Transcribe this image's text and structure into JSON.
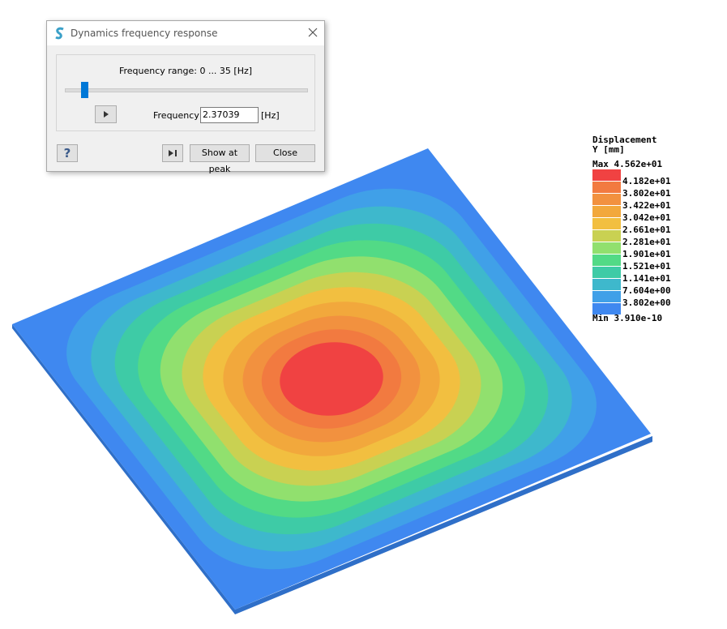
{
  "dialog": {
    "title": "Dynamics frequency response",
    "range_label": "Frequency range: 0 ... 35 [Hz]",
    "frequency_label": "Frequency",
    "frequency_value": "2.37039",
    "unit": "[Hz]",
    "help": "?",
    "buttons": [
      "Show at peak",
      "Close"
    ]
  },
  "legend": {
    "title": [
      "Displacement",
      "Y [mm]"
    ],
    "max": "Max  4.562e+01",
    "min": "Min 3.910e-10",
    "labels": [
      "4.182e+01",
      "3.802e+01",
      "3.422e+01",
      "3.042e+01",
      "2.661e+01",
      "2.281e+01",
      "1.901e+01",
      "1.521e+01",
      "1.141e+01",
      "7.604e+00",
      "3.802e+00"
    ],
    "colors": [
      "#f04242",
      "#f27a40",
      "#f2913f",
      "#f2a83c",
      "#f2bf40",
      "#c9d152",
      "#91e06e",
      "#52da86",
      "#3ecba6",
      "#3eb8cc",
      "#40a0e8",
      "#3f88f0"
    ]
  }
}
